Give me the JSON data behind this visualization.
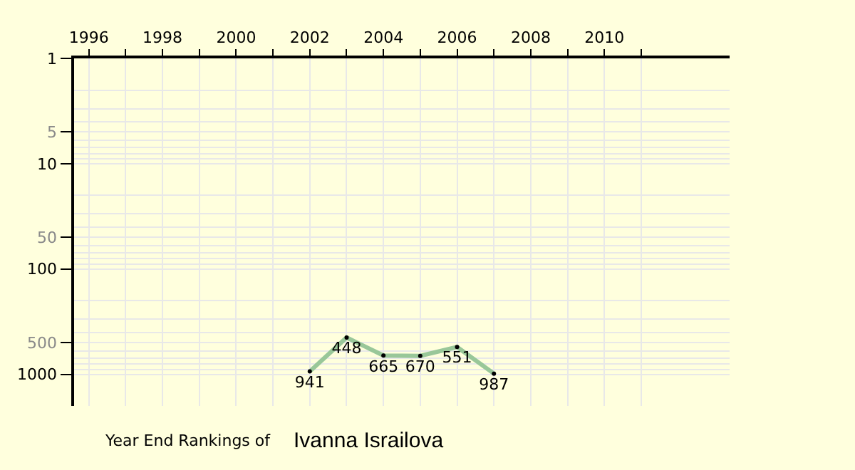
{
  "chart_data": {
    "type": "line",
    "title": "Year End Rankings of",
    "subtitle": "Ivanna Israilova",
    "x": [
      2002,
      2003,
      2004,
      2005,
      2006,
      2007
    ],
    "series": [
      {
        "color": "#99c799",
        "values": [
          941,
          448,
          665,
          670,
          551,
          987
        ]
      }
    ],
    "data_labels": true,
    "marker": "circle",
    "log": "y",
    "grid": true,
    "xlim": [
      1995.6,
      2013.4
    ],
    "ylim": [
      2000,
      1
    ],
    "xticks": [
      1996,
      {
        "value": 1997,
        "label": null
      },
      1998,
      {
        "value": 1999,
        "label": null
      },
      2000,
      {
        "value": 2001,
        "label": null
      },
      2002,
      {
        "value": 2003,
        "label": null
      },
      2004,
      {
        "value": 2005,
        "label": null
      },
      2006,
      {
        "value": 2007,
        "label": null
      },
      2008,
      {
        "value": 2009,
        "label": null
      },
      2010,
      {
        "value": 2011,
        "label": null
      }
    ],
    "yticks": [
      1,
      5,
      10,
      50,
      100,
      500,
      1000
    ]
  }
}
